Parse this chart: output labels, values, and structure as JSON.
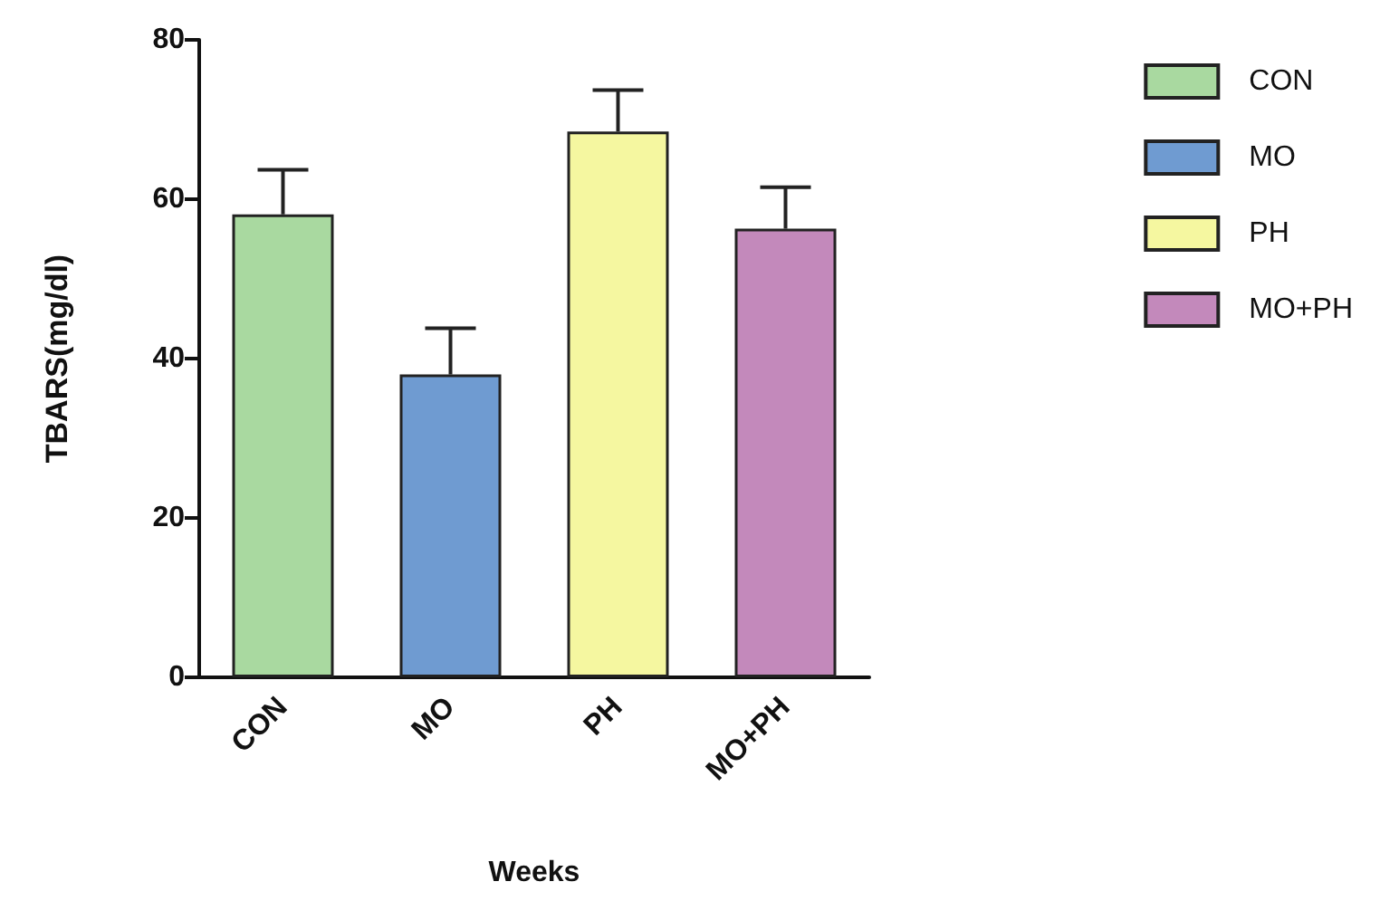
{
  "chart_data": {
    "type": "bar",
    "xlabel": "Weeks",
    "ylabel": "TBARS(mg/dl)",
    "categories": [
      "CON",
      "MO",
      "PH",
      "MO+PH"
    ],
    "series": [
      {
        "name": "CON",
        "color": "#a9d9a0",
        "values": [
          58.1,
          null,
          null,
          null
        ],
        "errors": [
          5.6,
          null,
          null,
          null
        ]
      },
      {
        "name": "MO",
        "color": "#6f9bd1",
        "values": [
          null,
          38.0,
          null,
          null
        ],
        "errors": [
          null,
          5.8,
          null,
          null
        ]
      },
      {
        "name": "PH",
        "color": "#f5f7a0",
        "values": [
          null,
          null,
          68.5,
          null
        ],
        "errors": [
          null,
          null,
          5.2,
          null
        ]
      },
      {
        "name": "MO+PH",
        "color": "#c389bb",
        "values": [
          null,
          null,
          null,
          56.3
        ],
        "errors": [
          null,
          null,
          null,
          5.2
        ]
      }
    ],
    "ylim": [
      0,
      80
    ],
    "yticks": [
      0,
      20,
      40,
      60,
      80
    ],
    "grid": false,
    "legend": "top right"
  }
}
